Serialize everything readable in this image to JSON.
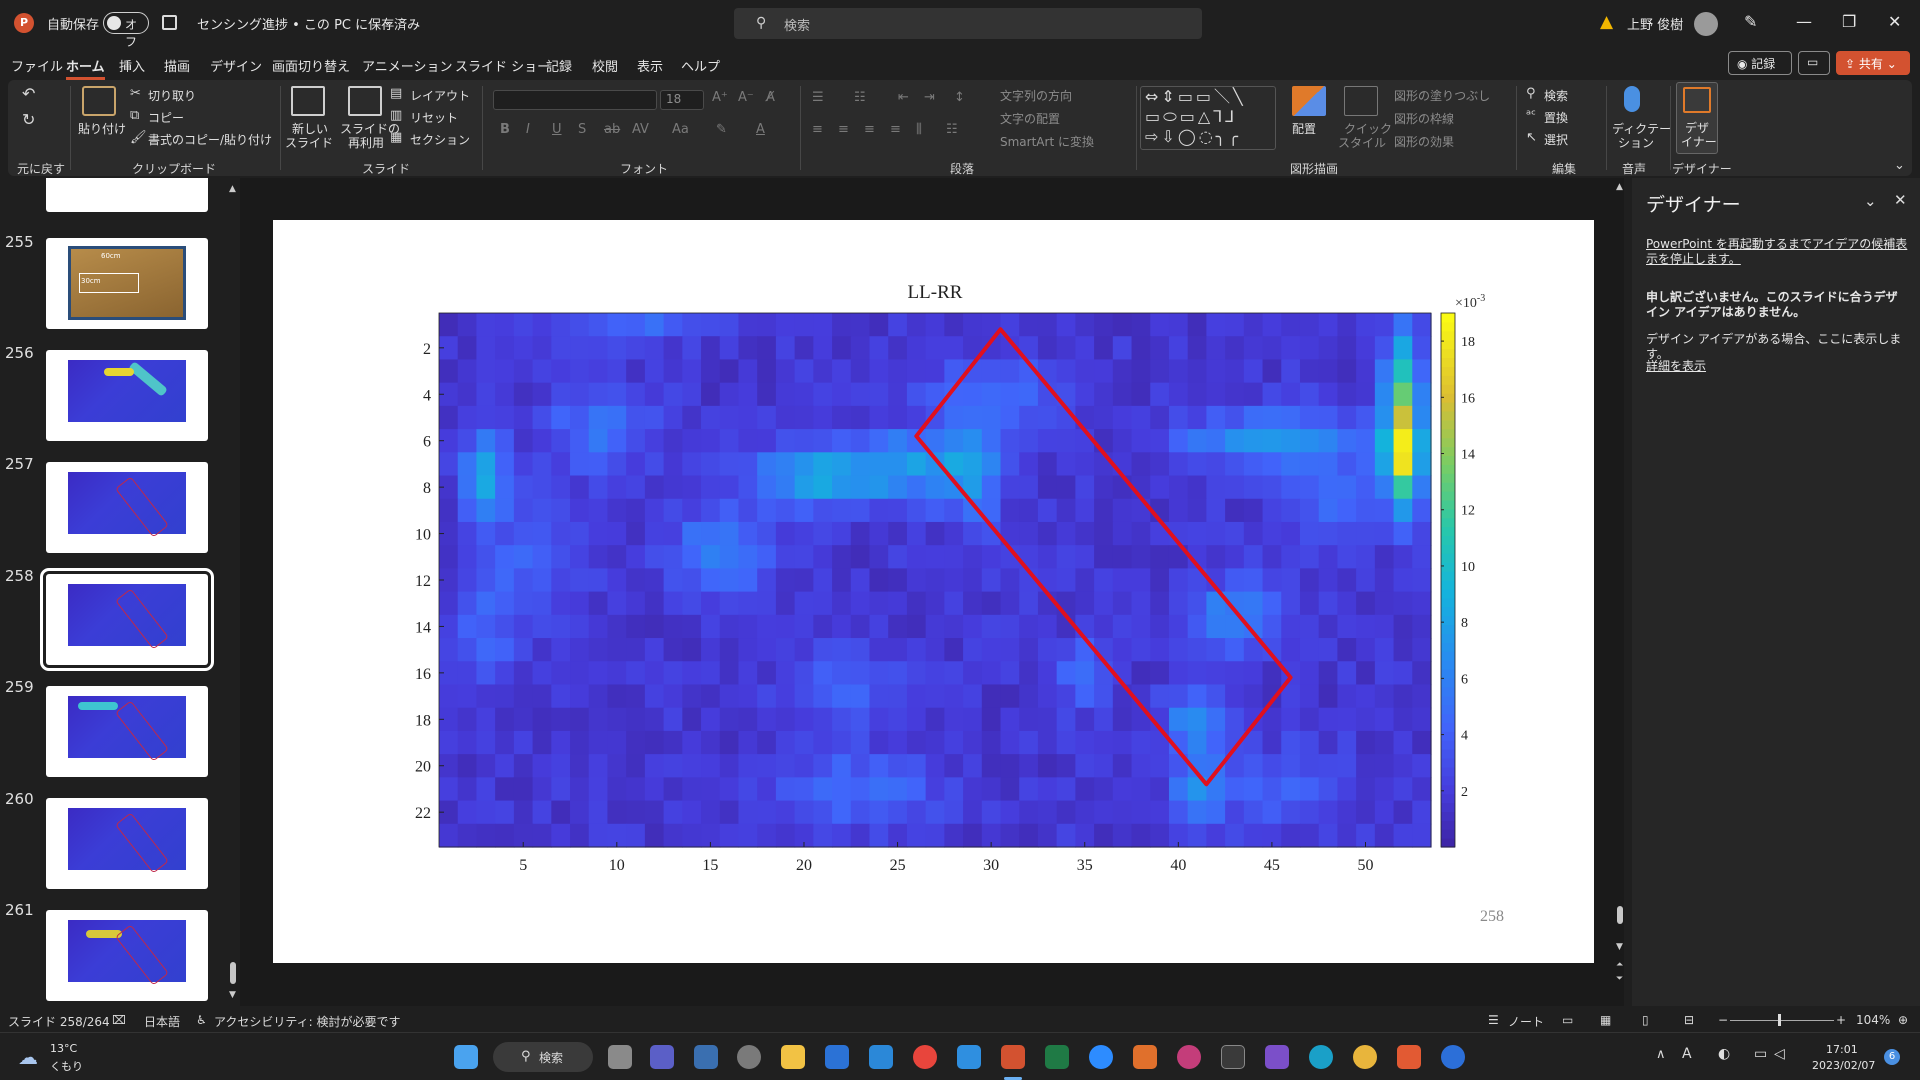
{
  "titlebar": {
    "autosave_label": "自動保存",
    "autosave_state": "オフ",
    "doc_title": "センシング進捗 • この PC に保存済み",
    "search_placeholder": "検索",
    "user_name": "上野 俊樹"
  },
  "menu": {
    "items": [
      "ファイル",
      "ホーム",
      "挿入",
      "描画",
      "デザイン",
      "画面切り替え",
      "アニメーション",
      "スライド ショー",
      "記録",
      "校閲",
      "表示",
      "ヘルプ"
    ],
    "record_button": "記録",
    "share_button": "共有"
  },
  "ribbon": {
    "undo_group": "元に戻す",
    "clipboard": {
      "paste": "貼り付け",
      "cut": "切り取り",
      "copy": "コピー",
      "format_painter": "書式のコピー/貼り付け",
      "group": "クリップボード"
    },
    "slides": {
      "new_slide_1": "新しい",
      "new_slide_2": "スライド",
      "reuse_1": "スライドの",
      "reuse_2": "再利用",
      "layout": "レイアウト",
      "reset": "リセット",
      "section": "セクション",
      "group": "スライド"
    },
    "font": {
      "size": "18",
      "group": "フォント"
    },
    "paragraph": {
      "text_direction": "文字列の方向",
      "align_text": "文字の配置",
      "smartart": "SmartArt に変換",
      "group": "段落"
    },
    "drawing": {
      "arrange": "配置",
      "quick_style_1": "クイック",
      "quick_style_2": "スタイル",
      "shape_fill": "図形の塗りつぶし",
      "shape_outline": "図形の枠線",
      "shape_effects": "図形の効果",
      "group": "図形描画"
    },
    "editing": {
      "find": "検索",
      "replace": "置換",
      "select": "選択",
      "group": "編集"
    },
    "voice": {
      "dictate_1": "ディクテー",
      "dictate_2": "ション",
      "group": "音声"
    },
    "designer": {
      "label_1": "デザ",
      "label_2": "イナー",
      "group": "デザイナー"
    }
  },
  "thumbnails": [
    {
      "num": "255"
    },
    {
      "num": "256"
    },
    {
      "num": "257"
    },
    {
      "num": "258"
    },
    {
      "num": "259"
    },
    {
      "num": "260"
    },
    {
      "num": "261"
    }
  ],
  "thumb255_labels": {
    "a": "60cm",
    "b": "30cm"
  },
  "slide": {
    "page_number": "258"
  },
  "chart_data": {
    "type": "heatmap",
    "title": "LL-RR",
    "x_ticks": [
      5,
      10,
      15,
      20,
      25,
      30,
      35,
      40,
      45,
      50
    ],
    "y_ticks": [
      2,
      4,
      6,
      8,
      10,
      12,
      14,
      16,
      18,
      20,
      22
    ],
    "xlim": [
      0.5,
      53.5
    ],
    "ylim": [
      0.5,
      23.5
    ],
    "colorbar": {
      "min": 0,
      "max": 0.019,
      "ticks": [
        2,
        4,
        6,
        8,
        10,
        12,
        14,
        16,
        18
      ],
      "exponent_label": "×10",
      "exponent_power": "-3",
      "colormap": "parula"
    },
    "cols": 53,
    "rows": 23,
    "hotspots": [
      {
        "x": 52,
        "y": 6.5,
        "sx": 0.7,
        "sy": 1.6,
        "v": 16
      },
      {
        "x": 52,
        "y": 3,
        "sx": 0.7,
        "sy": 1.6,
        "v": 8
      },
      {
        "x": 3,
        "y": 7.5,
        "sx": 0.8,
        "sy": 1.4,
        "v": 7
      },
      {
        "x": 21,
        "y": 7.5,
        "sx": 2.5,
        "sy": 1.0,
        "v": 7
      },
      {
        "x": 26,
        "y": 7,
        "sx": 2.0,
        "sy": 1.0,
        "v": 5
      },
      {
        "x": 29,
        "y": 7.5,
        "sx": 1.2,
        "sy": 1.5,
        "v": 5
      },
      {
        "x": 44,
        "y": 6,
        "sx": 3.0,
        "sy": 0.8,
        "v": 5
      },
      {
        "x": 15.5,
        "y": 10.8,
        "sx": 1.8,
        "sy": 1.3,
        "v": 4.5
      },
      {
        "x": 43,
        "y": 13.5,
        "sx": 1.5,
        "sy": 1.0,
        "v": 5
      },
      {
        "x": 41,
        "y": 18,
        "sx": 1.2,
        "sy": 1.0,
        "v": 5
      },
      {
        "x": 41,
        "y": 21,
        "sx": 1.0,
        "sy": 1.2,
        "v": 5
      },
      {
        "x": 9,
        "y": 5.5,
        "sx": 2.0,
        "sy": 1.2,
        "v": 3.5
      },
      {
        "x": 11,
        "y": 0.8,
        "sx": 2.5,
        "sy": 0.6,
        "v": 3.5
      },
      {
        "x": 35,
        "y": 16,
        "sx": 1.0,
        "sy": 1.0,
        "v": 3.5
      },
      {
        "x": 22,
        "y": 16.5,
        "sx": 2.0,
        "sy": 1.0,
        "v": 3
      },
      {
        "x": 30,
        "y": 4,
        "sx": 2.5,
        "sy": 1.2,
        "v": 3
      },
      {
        "x": 48,
        "y": 8,
        "sx": 2.0,
        "sy": 2.0,
        "v": 3
      },
      {
        "x": 3,
        "y": 14,
        "sx": 1.2,
        "sy": 1.5,
        "v": 3
      },
      {
        "x": 23,
        "y": 21,
        "sx": 3.0,
        "sy": 1.2,
        "v": 3
      },
      {
        "x": 46,
        "y": 21,
        "sx": 2.0,
        "sy": 1.2,
        "v": 3
      },
      {
        "x": 6,
        "y": 11,
        "sx": 2.0,
        "sy": 1.5,
        "v": 2.5
      }
    ],
    "annotation": {
      "type": "rounded-rectangle",
      "color": "#e0101e",
      "corners_data_units": [
        [
          30.5,
          1.2
        ],
        [
          46,
          16.2
        ],
        [
          41.5,
          20.8
        ],
        [
          26,
          5.8
        ]
      ]
    }
  },
  "designer": {
    "title": "デザイナー",
    "restart_notice": "PowerPoint を再起動するまでアイデアの候補表示を停止します。",
    "sorry_line": "申し訳ございません。このスライドに合うデザイン アイデアはありません。",
    "info_line": "デザイン アイデアがある場合、ここに表示します。",
    "details_link": "詳細を表示"
  },
  "statusbar": {
    "slide_count": "スライド 258/264",
    "language": "日本語",
    "accessibility": "アクセシビリティ: 検討が必要です",
    "notes": "ノート",
    "zoom": "104%"
  },
  "taskbar": {
    "weather_temp": "13°C",
    "weather_desc": "くもり",
    "search": "検索",
    "time": "17:01",
    "date": "2023/02/07",
    "notification_count": "6"
  },
  "colors": {
    "accent": "#d35230",
    "annotation": "#e0101e"
  }
}
